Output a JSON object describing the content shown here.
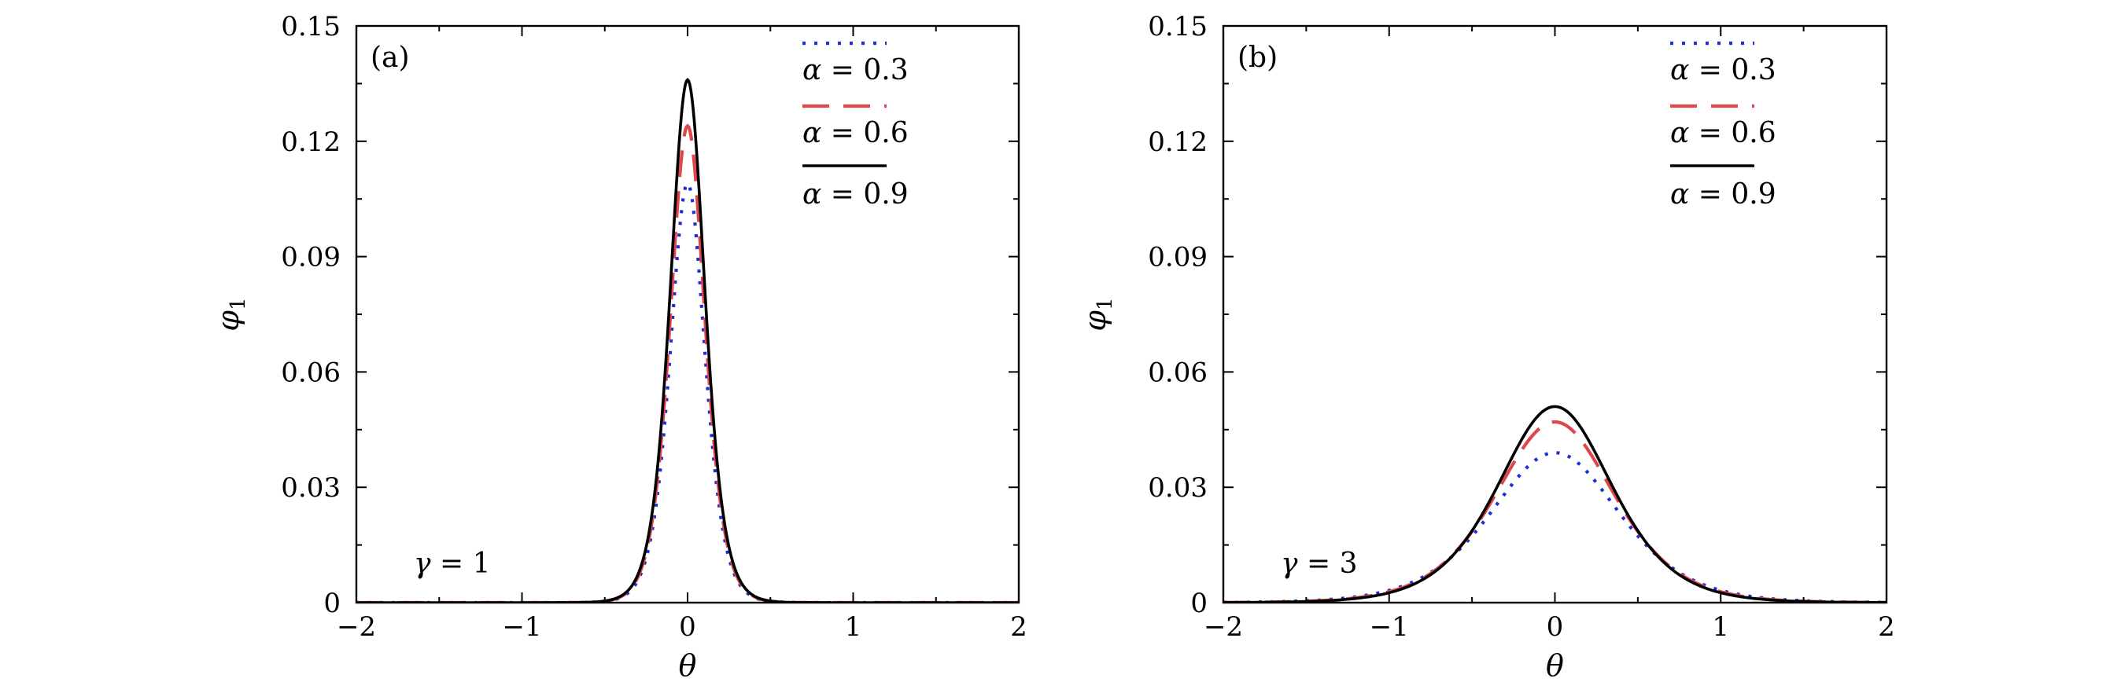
{
  "chart_data": [
    {
      "type": "line",
      "panel_label": "(a)",
      "annotation": {
        "symbol": "γ",
        "text": " = 1"
      },
      "xlabel": "θ",
      "ylabel": "φ",
      "ylabel_sub": "1",
      "xlim": [
        -2,
        2
      ],
      "ylim": [
        0,
        0.15
      ],
      "xticks": [
        -2,
        -1,
        0,
        1,
        2
      ],
      "xtick_labels": [
        "−2",
        "−1",
        "0",
        "1",
        "2"
      ],
      "yticks": [
        0,
        0.03,
        0.06,
        0.09,
        0.12,
        0.15
      ],
      "ytick_labels": [
        "0",
        "0.03",
        "0.06",
        "0.09",
        "0.12",
        "0.15"
      ],
      "grid": false,
      "legend_position": "top-right",
      "peak_shape": "sech2",
      "series": [
        {
          "symbol": "α",
          "label_rest": " = 0.3",
          "amplitude": 0.109,
          "width": 0.14,
          "color": "#1f2fd6",
          "style": "dotted"
        },
        {
          "symbol": "α",
          "label_rest": " = 0.6",
          "amplitude": 0.124,
          "width": 0.14,
          "color": "#e0474c",
          "style": "dashed"
        },
        {
          "symbol": "α",
          "label_rest": " = 0.9",
          "amplitude": 0.136,
          "width": 0.14,
          "color": "#000000",
          "style": "solid"
        }
      ]
    },
    {
      "type": "line",
      "panel_label": "(b)",
      "annotation": {
        "symbol": "γ",
        "text": " = 3"
      },
      "xlabel": "θ",
      "ylabel": "φ",
      "ylabel_sub": "1",
      "xlim": [
        -2,
        2
      ],
      "ylim": [
        0,
        0.15
      ],
      "xticks": [
        -2,
        -1,
        0,
        1,
        2
      ],
      "xtick_labels": [
        "−2",
        "−1",
        "0",
        "1",
        "2"
      ],
      "yticks": [
        0,
        0.03,
        0.06,
        0.09,
        0.12,
        0.15
      ],
      "ytick_labels": [
        "0",
        "0.03",
        "0.06",
        "0.09",
        "0.12",
        "0.15"
      ],
      "grid": false,
      "legend_position": "top-right",
      "peak_shape": "sech2",
      "series": [
        {
          "symbol": "α",
          "label_rest": " = 0.3",
          "amplitude": 0.039,
          "width": 0.52,
          "color": "#1f2fd6",
          "style": "dotted"
        },
        {
          "symbol": "α",
          "label_rest": " = 0.6",
          "amplitude": 0.047,
          "width": 0.48,
          "color": "#e0474c",
          "style": "dashed"
        },
        {
          "symbol": "α",
          "label_rest": " = 0.9",
          "amplitude": 0.051,
          "width": 0.46,
          "color": "#000000",
          "style": "solid"
        }
      ]
    }
  ]
}
